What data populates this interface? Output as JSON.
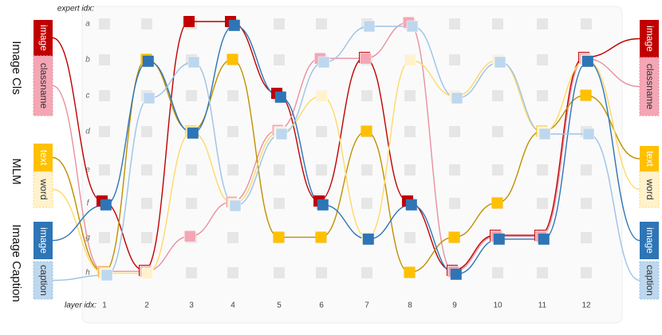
{
  "axis_labels": {
    "experts": "expert idx:",
    "layers": "layer idx:"
  },
  "experts": [
    "a",
    "b",
    "c",
    "d",
    "e",
    "f",
    "g",
    "h"
  ],
  "layers": [
    1,
    2,
    3,
    4,
    5,
    6,
    7,
    8,
    9,
    10,
    11,
    12
  ],
  "tasks": [
    "Image Cls",
    "MLM",
    "Image Caption"
  ],
  "tokens": [
    {
      "label": "image",
      "color": "#c00000",
      "route": [
        5,
        7,
        0,
        0,
        2,
        5,
        1,
        5,
        7,
        6,
        6,
        1
      ]
    },
    {
      "label": "classname",
      "color": "#f4a6b4",
      "route": [
        7,
        7,
        6,
        5,
        3,
        1,
        1,
        0,
        7,
        6,
        6,
        1
      ]
    },
    {
      "label": "text",
      "color": "#ffc000",
      "route": [
        7,
        1,
        3,
        1,
        6,
        6,
        3,
        7,
        6,
        5,
        3,
        2
      ]
    },
    {
      "label": "word",
      "color": "#fff2cc",
      "route": [
        7,
        7,
        3,
        5,
        3,
        2,
        6,
        1,
        2,
        1,
        3,
        1
      ]
    },
    {
      "label": "image",
      "color": "#2e75b6",
      "route": [
        5,
        1,
        3,
        0,
        2,
        5,
        6,
        5,
        7,
        6,
        6,
        1
      ]
    },
    {
      "label": "caption",
      "color": "#bdd7ee",
      "route": [
        7,
        2,
        1,
        5,
        3,
        1,
        0,
        0,
        2,
        1,
        3,
        3
      ]
    }
  ]
}
